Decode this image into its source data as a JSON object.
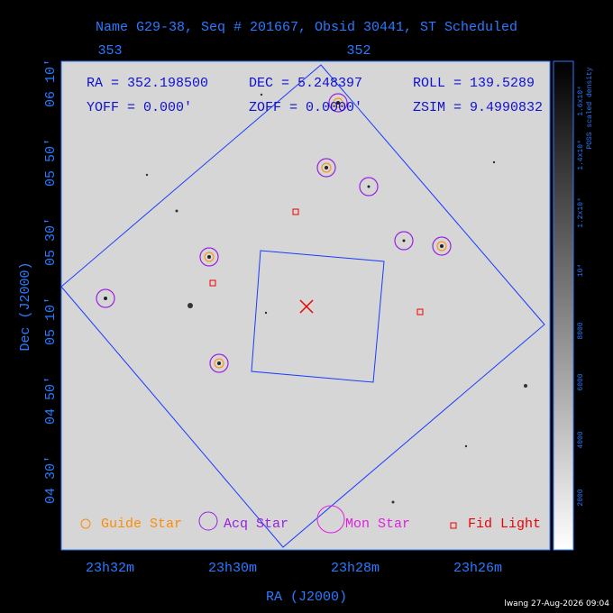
{
  "header": {
    "title": "Name G29-38, Seq # 201667, Obsid 30441, ST Scheduled"
  },
  "info": {
    "ra": "RA = 352.198500",
    "dec": "DEC = 5.248397",
    "roll": "ROLL = 139.5289",
    "yoff": "YOFF =   0.000'",
    "zoff": "ZOFF =   0.0000'",
    "zsim": "ZSIM = 9.4990832"
  },
  "axes": {
    "top_ticks": [
      "353",
      "352"
    ],
    "y_ticks": [
      "06 10'",
      "05 50'",
      "05 30'",
      "05 10'",
      "04 50'",
      "04 30'"
    ],
    "y_label": "Dec (J2000)",
    "x_ticks": [
      "23h32m",
      "23h30m",
      "23h28m",
      "23h26m"
    ],
    "x_label": "RA (J2000)"
  },
  "legend": [
    "Guide Star",
    "Acq Star",
    "Mon Star",
    "Fid Light"
  ],
  "colorbar": {
    "label": "POSS scaled density",
    "ticks": [
      "2000",
      "4000",
      "6000",
      "8000",
      "10⁴",
      "1.2x10⁴",
      "1.4x10⁴",
      "1.6x10⁴"
    ]
  },
  "footer": "lwang 27-Aug-2026 09:04"
}
